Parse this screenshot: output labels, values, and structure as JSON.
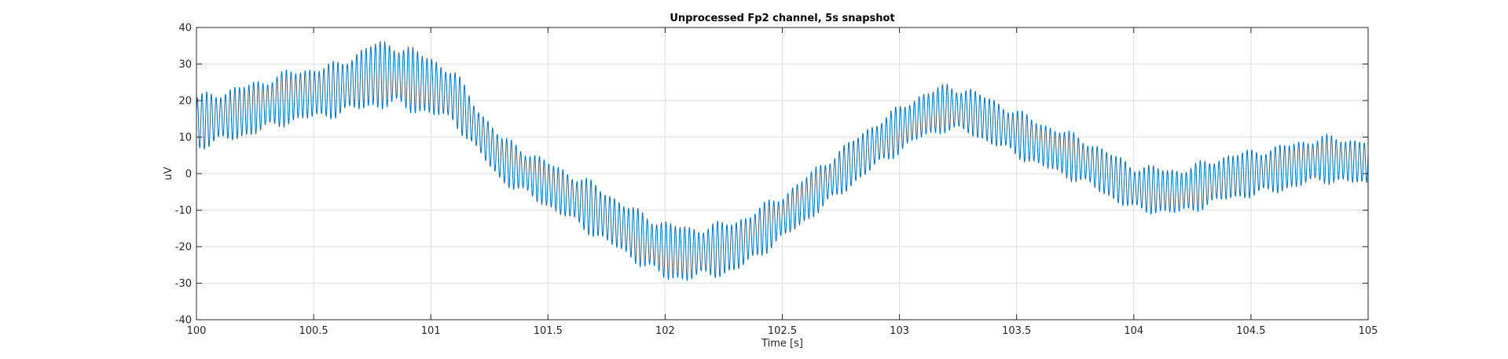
{
  "chart_data": {
    "type": "line",
    "title": "Unprocessed Fp2 channel, 5s snapshot",
    "xlabel": "Time [s]",
    "ylabel": "uV",
    "xlim": [
      100,
      105
    ],
    "ylim": [
      -40,
      40
    ],
    "x_ticks": [
      100,
      100.5,
      101,
      101.5,
      102,
      102.5,
      103,
      103.5,
      104,
      104.5,
      105
    ],
    "x_tick_labels": [
      "100",
      "100.5",
      "101",
      "101.5",
      "102",
      "102.5",
      "103",
      "103.5",
      "104",
      "104.5",
      "105"
    ],
    "y_ticks": [
      -40,
      -30,
      -20,
      -10,
      0,
      10,
      20,
      30,
      40
    ],
    "y_tick_labels": [
      "-40",
      "-30",
      "-20",
      "-10",
      "0",
      "10",
      "20",
      "30",
      "40"
    ],
    "grid": true,
    "series": [
      {
        "color": "#0072BD",
        "oscillation_hz": 50,
        "envelope": {
          "x": [
            100.0,
            100.2,
            100.4,
            100.6,
            100.75,
            100.85,
            101.0,
            101.1,
            101.2,
            101.3,
            101.5,
            101.7,
            101.9,
            102.0,
            102.1,
            102.3,
            102.5,
            102.7,
            102.9,
            103.1,
            103.2,
            103.3,
            103.4,
            103.6,
            103.8,
            104.0,
            104.2,
            104.4,
            104.6,
            104.8,
            105.0
          ],
          "center": [
            14,
            17,
            21,
            23,
            27,
            27,
            24,
            21,
            12,
            4,
            -3,
            -10,
            -18,
            -21,
            -22,
            -20,
            -12,
            -2,
            8,
            16,
            18,
            17,
            14,
            8,
            3,
            -4,
            -5,
            -1,
            1,
            4,
            3
          ],
          "amplitude": [
            8,
            8,
            8,
            8,
            10,
            10,
            9,
            8,
            7,
            7,
            7,
            8,
            8,
            9,
            8,
            8,
            7,
            7,
            7,
            7,
            7,
            7,
            7,
            7,
            7,
            7,
            7,
            7,
            7,
            7,
            7
          ]
        }
      }
    ]
  }
}
